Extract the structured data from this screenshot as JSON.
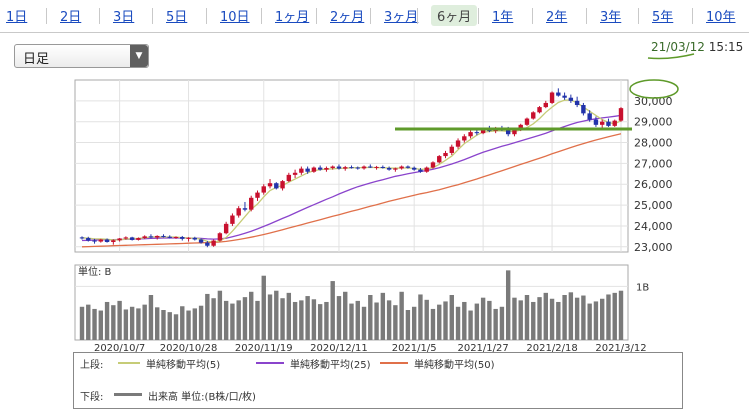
{
  "tabs": [
    {
      "label": "1日",
      "active": false
    },
    {
      "label": "2日",
      "active": false
    },
    {
      "label": "3日",
      "active": false
    },
    {
      "label": "5日",
      "active": false
    },
    {
      "label": "10日",
      "active": false
    },
    {
      "label": "1ヶ月",
      "active": false
    },
    {
      "label": "2ヶ月",
      "active": false
    },
    {
      "label": "3ヶ月",
      "active": false
    },
    {
      "label": "6ヶ月",
      "active": true
    },
    {
      "label": "1年",
      "active": false
    },
    {
      "label": "2年",
      "active": false
    },
    {
      "label": "3年",
      "active": false
    },
    {
      "label": "5年",
      "active": false
    },
    {
      "label": "10年",
      "active": false
    }
  ],
  "selector": {
    "value": "日足"
  },
  "datetime": {
    "date": "21/03/12",
    "time": "15:15"
  },
  "colors": {
    "up": "#c8102e",
    "down": "#2233aa",
    "ma5": "#c6cc77",
    "ma25": "#8a44cc",
    "ma50": "#e0704a",
    "annotation": "#5e9a2a",
    "volume": "#7a7a7a"
  },
  "chart_data": {
    "type": "candlestick",
    "price_ticks": [
      "23,000",
      "24,000",
      "25,000",
      "26,000",
      "27,000",
      "28,000",
      "29,000",
      "30,000"
    ],
    "ylim": [
      22750,
      31000
    ],
    "x_tick_labels": [
      "2020/10/7",
      "2020/10/28",
      "2020/11/19",
      "2020/12/11",
      "2021/1/5",
      "2021/1/27",
      "2021/2/18",
      "2021/3/12"
    ],
    "volume_unit_label": "単位: B",
    "volume_tick_label": "1B",
    "volume_ylim": [
      0,
      1.4
    ],
    "candles": [
      [
        23450,
        23500,
        23350,
        23420
      ],
      [
        23420,
        23480,
        23250,
        23300
      ],
      [
        23300,
        23380,
        23150,
        23250
      ],
      [
        23250,
        23380,
        23200,
        23350
      ],
      [
        23350,
        23400,
        23200,
        23230
      ],
      [
        23230,
        23350,
        23100,
        23310
      ],
      [
        23310,
        23420,
        23250,
        23400
      ],
      [
        23400,
        23500,
        23350,
        23450
      ],
      [
        23450,
        23480,
        23300,
        23330
      ],
      [
        23330,
        23450,
        23300,
        23420
      ],
      [
        23420,
        23550,
        23380,
        23500
      ],
      [
        23500,
        23600,
        23400,
        23450
      ],
      [
        23450,
        23550,
        23350,
        23520
      ],
      [
        23520,
        23600,
        23450,
        23480
      ],
      [
        23480,
        23550,
        23400,
        23430
      ],
      [
        23430,
        23500,
        23380,
        23470
      ],
      [
        23470,
        23520,
        23300,
        23380
      ],
      [
        23380,
        23460,
        23250,
        23430
      ],
      [
        23430,
        23480,
        23300,
        23350
      ],
      [
        23350,
        23400,
        23150,
        23200
      ],
      [
        23200,
        23280,
        22980,
        23050
      ],
      [
        23050,
        23350,
        23000,
        23300
      ],
      [
        23300,
        23700,
        23250,
        23650
      ],
      [
        23650,
        24200,
        23600,
        24100
      ],
      [
        24100,
        24600,
        24000,
        24500
      ],
      [
        24500,
        24950,
        24400,
        24850
      ],
      [
        24850,
        25150,
        24700,
        24780
      ],
      [
        24780,
        25450,
        24700,
        25350
      ],
      [
        25350,
        25700,
        25200,
        25600
      ],
      [
        25600,
        26000,
        25500,
        25900
      ],
      [
        25900,
        26250,
        25800,
        26050
      ],
      [
        26050,
        26100,
        25750,
        25800
      ],
      [
        25800,
        26200,
        25700,
        26150
      ],
      [
        26150,
        26550,
        26100,
        26450
      ],
      [
        26450,
        26700,
        26300,
        26550
      ],
      [
        26550,
        26850,
        26450,
        26750
      ],
      [
        26750,
        26850,
        26500,
        26600
      ],
      [
        26600,
        26850,
        26550,
        26800
      ],
      [
        26800,
        26900,
        26650,
        26700
      ],
      [
        26700,
        26850,
        26600,
        26780
      ],
      [
        26780,
        26900,
        26700,
        26850
      ],
      [
        26850,
        26950,
        26700,
        26750
      ],
      [
        26750,
        26880,
        26650,
        26820
      ],
      [
        26820,
        26900,
        26750,
        26800
      ],
      [
        26800,
        26850,
        26700,
        26760
      ],
      [
        26760,
        26900,
        26700,
        26850
      ],
      [
        26850,
        26950,
        26780,
        26800
      ],
      [
        26800,
        26880,
        26700,
        26830
      ],
      [
        26830,
        26900,
        26750,
        26780
      ],
      [
        26780,
        26850,
        26650,
        26700
      ],
      [
        26700,
        26800,
        26600,
        26760
      ],
      [
        26760,
        26900,
        26700,
        26850
      ],
      [
        26850,
        26900,
        26750,
        26790
      ],
      [
        26790,
        26850,
        26650,
        26700
      ],
      [
        26700,
        26780,
        26550,
        26600
      ],
      [
        26600,
        26850,
        26550,
        26800
      ],
      [
        26800,
        27100,
        26750,
        27050
      ],
      [
        27050,
        27400,
        27000,
        27350
      ],
      [
        27350,
        27600,
        27250,
        27500
      ],
      [
        27500,
        27900,
        27400,
        27800
      ],
      [
        27800,
        28200,
        27700,
        28100
      ],
      [
        28100,
        28400,
        28000,
        28300
      ],
      [
        28300,
        28600,
        28200,
        28500
      ],
      [
        28500,
        28700,
        28350,
        28450
      ],
      [
        28450,
        28700,
        28400,
        28650
      ],
      [
        28650,
        28800,
        28500,
        28550
      ],
      [
        28550,
        28750,
        28450,
        28700
      ],
      [
        28700,
        28800,
        28550,
        28600
      ],
      [
        28600,
        28750,
        28300,
        28400
      ],
      [
        28400,
        28650,
        28300,
        28600
      ],
      [
        28600,
        28900,
        28550,
        28850
      ],
      [
        28850,
        29200,
        28800,
        29150
      ],
      [
        29150,
        29500,
        29100,
        29450
      ],
      [
        29450,
        29750,
        29400,
        29700
      ],
      [
        29700,
        30000,
        29650,
        29900
      ],
      [
        29900,
        30450,
        29850,
        30400
      ],
      [
        30400,
        30600,
        30200,
        30250
      ],
      [
        30250,
        30400,
        30050,
        30150
      ],
      [
        30150,
        30300,
        29900,
        30000
      ],
      [
        30000,
        30200,
        29700,
        29800
      ],
      [
        29800,
        29900,
        29300,
        29400
      ],
      [
        29400,
        29550,
        29000,
        29100
      ],
      [
        29100,
        29250,
        28750,
        28850
      ],
      [
        28850,
        29100,
        28700,
        29000
      ],
      [
        29000,
        29150,
        28750,
        28800
      ],
      [
        28800,
        29100,
        28750,
        29050
      ],
      [
        29050,
        29700,
        29000,
        29650
      ]
    ],
    "volume": [
      0.62,
      0.66,
      0.58,
      0.55,
      0.71,
      0.65,
      0.73,
      0.57,
      0.62,
      0.59,
      0.66,
      0.84,
      0.61,
      0.56,
      0.52,
      0.48,
      0.63,
      0.55,
      0.59,
      0.64,
      0.86,
      0.78,
      0.92,
      0.73,
      0.68,
      0.74,
      0.8,
      0.9,
      0.73,
      1.2,
      0.85,
      0.92,
      0.78,
      0.88,
      0.71,
      0.74,
      0.82,
      0.76,
      0.67,
      0.71,
      1.1,
      0.82,
      0.9,
      0.68,
      0.73,
      0.62,
      0.84,
      0.7,
      0.88,
      0.74,
      0.65,
      0.9,
      0.56,
      0.62,
      0.85,
      0.75,
      0.58,
      0.66,
      0.72,
      0.84,
      0.62,
      0.71,
      0.55,
      0.68,
      0.79,
      0.73,
      0.58,
      0.62,
      1.3,
      0.79,
      0.74,
      0.84,
      0.71,
      0.8,
      0.88,
      0.77,
      0.71,
      0.84,
      0.89,
      0.79,
      0.83,
      0.68,
      0.72,
      0.77,
      0.85,
      0.88,
      0.92
    ],
    "ma5": [
      23430,
      23410,
      23380,
      23380,
      23360,
      23330,
      23330,
      23370,
      23390,
      23400,
      23430,
      23470,
      23480,
      23470,
      23470,
      23470,
      23440,
      23420,
      23410,
      23370,
      23260,
      23230,
      23280,
      23450,
      23750,
      24100,
      24450,
      24800,
      25050,
      25400,
      25700,
      25850,
      25950,
      26100,
      26250,
      26400,
      26550,
      26650,
      26700,
      26720,
      26740,
      26760,
      26770,
      26790,
      26800,
      26800,
      26810,
      26800,
      26790,
      26780,
      26770,
      26780,
      26780,
      26760,
      26710,
      26730,
      26800,
      26950,
      27150,
      27350,
      27650,
      27950,
      28150,
      28350,
      28500,
      28530,
      28560,
      28560,
      28530,
      28530,
      28600,
      28720,
      28900,
      29150,
      29450,
      29700,
      29920,
      30030,
      30040,
      29900,
      29700,
      29500,
      29300,
      29100,
      28960,
      28900,
      29050
    ],
    "ma25": [
      23300,
      23310,
      23320,
      23330,
      23340,
      23340,
      23350,
      23360,
      23370,
      23380,
      23390,
      23400,
      23410,
      23420,
      23420,
      23420,
      23420,
      23420,
      23410,
      23400,
      23380,
      23370,
      23380,
      23410,
      23480,
      23560,
      23650,
      23750,
      23860,
      23980,
      24100,
      24230,
      24360,
      24480,
      24620,
      24760,
      24890,
      25020,
      25150,
      25280,
      25400,
      25530,
      25650,
      25770,
      25880,
      25970,
      26060,
      26140,
      26220,
      26300,
      26380,
      26440,
      26500,
      26560,
      26610,
      26660,
      26720,
      26790,
      26880,
      26970,
      27070,
      27180,
      27300,
      27420,
      27530,
      27630,
      27730,
      27820,
      27900,
      27990,
      28080,
      28170,
      28260,
      28350,
      28450,
      28560,
      28670,
      28770,
      28870,
      28960,
      29030,
      29090,
      29140,
      29180,
      29220,
      29260,
      29300
    ],
    "ma50": [
      23000,
      23010,
      23020,
      23030,
      23040,
      23050,
      23060,
      23070,
      23080,
      23090,
      23100,
      23110,
      23120,
      23130,
      23140,
      23150,
      23160,
      23170,
      23180,
      23190,
      23200,
      23210,
      23230,
      23260,
      23300,
      23350,
      23400,
      23460,
      23520,
      23590,
      23660,
      23740,
      23820,
      23900,
      23980,
      24060,
      24140,
      24220,
      24300,
      24380,
      24460,
      24540,
      24620,
      24700,
      24780,
      24860,
      24940,
      25020,
      25100,
      25180,
      25260,
      25330,
      25400,
      25470,
      25540,
      25600,
      25670,
      25740,
      25820,
      25900,
      25980,
      26070,
      26160,
      26250,
      26350,
      26450,
      26550,
      26650,
      26750,
      26850,
      26950,
      27050,
      27150,
      27250,
      27350,
      27460,
      27560,
      27660,
      27760,
      27860,
      27950,
      28040,
      28120,
      28200,
      28280,
      28350,
      28420
    ],
    "annotation_level": 28650,
    "legend": {
      "upper_label": "上段:",
      "lower_label": "下段:",
      "ma5_label": "単純移動平均(5)",
      "ma25_label": "単純移動平均(25)",
      "ma50_label": "単純移動平均(50)",
      "volume_label": "出来高 単位:(B株/口/枚)"
    }
  }
}
